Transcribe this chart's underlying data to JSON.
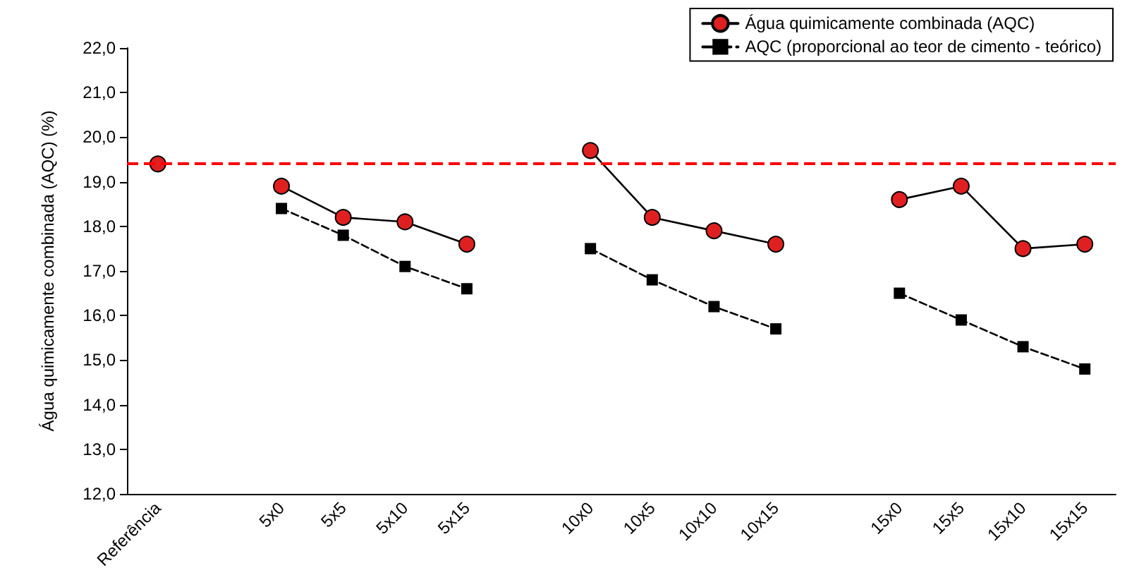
{
  "chart_data": {
    "type": "line",
    "ylabel": "Água quimicamente combinada (AQC) (%)",
    "categories": [
      "Referência",
      null,
      "5x0",
      "5x5",
      "5x10",
      "5x15",
      null,
      "10x0",
      "10x5",
      "10x10",
      "10x15",
      null,
      "15x0",
      "15x5",
      "15x10",
      "15x15"
    ],
    "series": [
      {
        "name": "Água quimicamente combinada (AQC)",
        "color": "#e02020",
        "marker": "circle",
        "line_style": "solid",
        "values": [
          19.4,
          null,
          18.9,
          18.2,
          18.1,
          17.6,
          null,
          19.7,
          18.2,
          17.9,
          17.6,
          null,
          18.6,
          18.9,
          17.5,
          17.6
        ]
      },
      {
        "name": "AQC (proporcional ao teor de cimento - teórico)",
        "color": "#000000",
        "marker": "square",
        "line_style": "dashed",
        "values": [
          null,
          null,
          18.4,
          17.8,
          17.1,
          16.6,
          null,
          17.5,
          16.8,
          16.2,
          15.7,
          null,
          16.5,
          15.9,
          15.3,
          14.8
        ]
      }
    ],
    "ylim": [
      12,
      22
    ],
    "yticks": [
      {
        "value": 12,
        "label": "12,0"
      },
      {
        "value": 13,
        "label": "13,0"
      },
      {
        "value": 14,
        "label": "14,0"
      },
      {
        "value": 15,
        "label": "15,0"
      },
      {
        "value": 16,
        "label": "16,0"
      },
      {
        "value": 17,
        "label": "17,0"
      },
      {
        "value": 18,
        "label": "18,0"
      },
      {
        "value": 19,
        "label": "19,0"
      },
      {
        "value": 20,
        "label": "20,0"
      },
      {
        "value": 21,
        "label": "21,0"
      },
      {
        "value": 22,
        "label": "22,0"
      }
    ],
    "ref_lines": [
      {
        "axis": "y",
        "value": 19.4,
        "color": "#ff0000",
        "line_style": "dashed"
      }
    ],
    "grid": false,
    "legend": "top right"
  }
}
